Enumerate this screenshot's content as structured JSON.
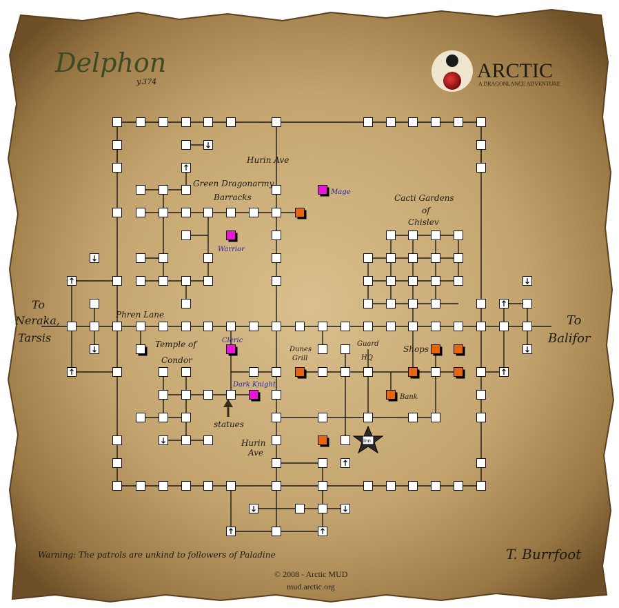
{
  "map": {
    "title": "Delphon",
    "year": "y.374",
    "brand": {
      "name": "ARCTIC",
      "tagline": "A DRAGONLANCE ADVENTURE"
    },
    "streets": {
      "hurin_top": "Hurin Ave",
      "hurin_bottom_1": "Hurin",
      "hurin_bottom_2": "Ave",
      "phren": "Phren Lane"
    },
    "places": {
      "barracks_1": "Green Dragonarmy",
      "barracks_2": "Barracks",
      "gardens_1": "Cacti Gardens",
      "gardens_2": "of",
      "gardens_3": "Chislev",
      "temple_1": "Temple of",
      "temple_2": "Condor",
      "grill_1": "Dunes",
      "grill_2": "Grill",
      "guard_1": "Guard",
      "guard_2": "HQ",
      "shops": "Shops",
      "bank": "Bank",
      "inn": "Inn",
      "statues": "statues"
    },
    "npcs": {
      "mage": "Mage",
      "warrior": "Warrior",
      "cleric": "Cleric",
      "dark_knight": "Dark Knight"
    },
    "exits": {
      "west_1": "To",
      "west_2": "Neraka,",
      "west_3": "Tarsis",
      "east_1": "To",
      "east_2": "Balifor"
    },
    "warning": "Warning: The patrols are unkind to followers of Paladine",
    "artist": "T. Burrfoot",
    "copyright": "© 2008 - Arctic MUD",
    "website": "mud.arctic.org",
    "colors": {
      "parchment": "#c9ab77",
      "parchment_dark": "#8a6a3c",
      "line": "#1a1a1a",
      "room": "#ffffff",
      "shop": "#e8650f",
      "guild": "#e816d6",
      "npc_text": "#2b22a8",
      "title": "#3c4a26"
    }
  }
}
